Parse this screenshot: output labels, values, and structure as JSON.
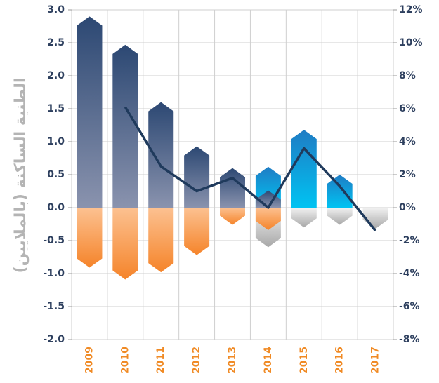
{
  "chart_data": {
    "type": "bar",
    "y_label": "الطنية الساكنة (بالملايين)",
    "categories": [
      "2009",
      "2010",
      "2011",
      "2012",
      "2013",
      "2014",
      "2015",
      "2016",
      "2017"
    ],
    "series": [
      {
        "color": "#a8a8a8",
        "gradient_to": "#f2f2f2",
        "values": [
          null,
          null,
          null,
          null,
          null,
          -0.6,
          -0.3,
          -0.26,
          -0.32
        ]
      },
      {
        "color": "#1f7cc4",
        "gradient_to": "#00c3f2",
        "values": [
          null,
          null,
          null,
          null,
          null,
          0.62,
          1.18,
          0.5,
          null
        ]
      },
      {
        "color": "#2c4873",
        "gradient_to": "#8a93ae",
        "values": [
          2.9,
          2.47,
          1.6,
          0.93,
          0.6,
          0.26,
          null,
          null,
          null
        ]
      },
      {
        "color": "#f5842a",
        "gradient_to": "#fcc191",
        "values": [
          -0.91,
          -1.09,
          -0.98,
          -0.72,
          -0.26,
          -0.34,
          null,
          null,
          null
        ]
      },
      {
        "type": "line",
        "axis": "y2",
        "color": "#1f3a5c",
        "values": [
          null,
          6.1,
          2.5,
          1.0,
          1.8,
          0,
          3.6,
          1.3,
          -1.4
        ]
      }
    ],
    "ylim": [
      -2.0,
      3.0
    ],
    "yticks": [
      {
        "value": 3.0,
        "label": "3.0"
      },
      {
        "value": 2.5,
        "label": "2.5"
      },
      {
        "value": 2.0,
        "label": "2.0"
      },
      {
        "value": 1.5,
        "label": "1.5"
      },
      {
        "value": 1.0,
        "label": "1.0"
      },
      {
        "value": 0.5,
        "label": "0.5"
      },
      {
        "value": 0.0,
        "label": "0.0"
      },
      {
        "value": -0.5,
        "label": "-0.5"
      },
      {
        "value": -1.0,
        "label": "-1.0"
      },
      {
        "value": -1.5,
        "label": "-1.5"
      },
      {
        "value": -2.0,
        "label": "-2.0"
      }
    ],
    "y2lim": [
      -8,
      12
    ],
    "y2ticks": [
      {
        "value": 12,
        "label": "12%"
      },
      {
        "value": 10,
        "label": "10%"
      },
      {
        "value": 8,
        "label": "8%"
      },
      {
        "value": 6,
        "label": "6%"
      },
      {
        "value": 4,
        "label": "4%"
      },
      {
        "value": 2,
        "label": "2%"
      },
      {
        "value": 0,
        "label": "0%"
      },
      {
        "value": -2,
        "label": "-2%"
      },
      {
        "value": -4,
        "label": "-4%"
      },
      {
        "value": -6,
        "label": "-6%"
      },
      {
        "value": -8,
        "label": "-8%"
      }
    ],
    "grid": true
  }
}
